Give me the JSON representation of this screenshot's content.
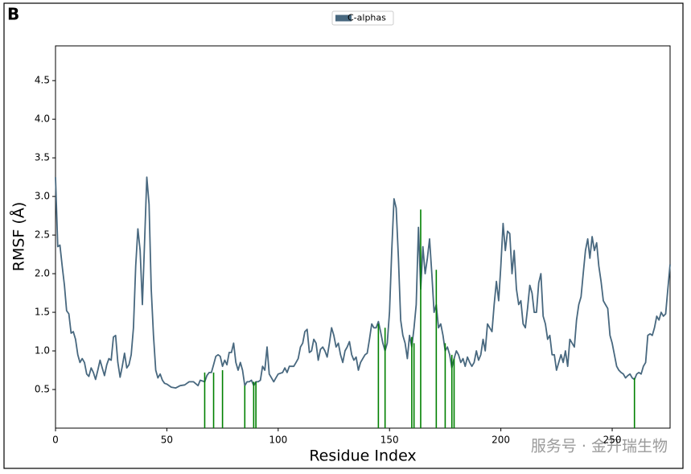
{
  "chart_data": {
    "type": "line",
    "panel_label": "B",
    "xlabel": "Residue Index",
    "ylabel": "RMSF (Å)",
    "watermark": "服务号 · 金开瑞生物",
    "xlim": [
      0,
      276
    ],
    "ylim": [
      0,
      4.95
    ],
    "xticks": [
      0,
      50,
      100,
      150,
      200,
      250
    ],
    "yticks": [
      0.5,
      {
        "value": 1,
        "label": "1.0"
      },
      1.5,
      {
        "value": 2,
        "label": "2.0"
      },
      2.5,
      {
        "value": 3,
        "label": "3.0"
      },
      3.5,
      {
        "value": 4,
        "label": "4.0"
      },
      4.5
    ],
    "legend": "top-center",
    "series": [
      {
        "name": "C-alphas",
        "color": "#48687f",
        "style": "line",
        "x": [
          0,
          1,
          2,
          3,
          4,
          5,
          6,
          7,
          8,
          9,
          10,
          11,
          12,
          13,
          14,
          15,
          16,
          17,
          18,
          19,
          20,
          21,
          22,
          23,
          24,
          25,
          26,
          27,
          28,
          29,
          30,
          31,
          32,
          33,
          34,
          35,
          36,
          37,
          38,
          39,
          40,
          41,
          42,
          43,
          44,
          45,
          46,
          47,
          48,
          49,
          50,
          52,
          54,
          56,
          58,
          60,
          62,
          64,
          65,
          67,
          68,
          69,
          70,
          71,
          72,
          73,
          74,
          75,
          76,
          77,
          78,
          79,
          80,
          81,
          82,
          83,
          84,
          85,
          86,
          87,
          88,
          89,
          90,
          91,
          92,
          93,
          94,
          95,
          96,
          97,
          98,
          99,
          100,
          102,
          103,
          104,
          105,
          107,
          108,
          109,
          110,
          111,
          112,
          113,
          114,
          115,
          116,
          117,
          118,
          119,
          120,
          121,
          122,
          123,
          124,
          125,
          126,
          127,
          128,
          129,
          130,
          131,
          132,
          133,
          134,
          135,
          136,
          137,
          138,
          139,
          140,
          141,
          142,
          143,
          144,
          145,
          146,
          147,
          148,
          149,
          150,
          151,
          152,
          153,
          154,
          155,
          156,
          157,
          158,
          159,
          160,
          161,
          162,
          163,
          164,
          165,
          166,
          167,
          168,
          169,
          170,
          171,
          172,
          173,
          174,
          175,
          176,
          177,
          178,
          179,
          180,
          181,
          182,
          183,
          184,
          185,
          186,
          187,
          188,
          189,
          190,
          191,
          192,
          193,
          194,
          195,
          196,
          197,
          198,
          199,
          200,
          201,
          202,
          203,
          204,
          205,
          206,
          207,
          208,
          209,
          210,
          211,
          212,
          213,
          214,
          215,
          216,
          217,
          218,
          219,
          220,
          221,
          222,
          223,
          224,
          225,
          226,
          227,
          228,
          229,
          230,
          231,
          232,
          233,
          234,
          235,
          236,
          237,
          238,
          239,
          240,
          241,
          242,
          243,
          244,
          245,
          246,
          247,
          248,
          249,
          250,
          251,
          252,
          253,
          254,
          255,
          256,
          257,
          258,
          259,
          260,
          261,
          262,
          263,
          264,
          265,
          266,
          267,
          268,
          269,
          270,
          271,
          272,
          273,
          274,
          275,
          276
        ],
        "values": [
          3.25,
          2.35,
          2.37,
          2.1,
          1.85,
          1.52,
          1.48,
          1.23,
          1.25,
          1.15,
          0.95,
          0.85,
          0.9,
          0.85,
          0.7,
          0.67,
          0.78,
          0.72,
          0.63,
          0.75,
          0.88,
          0.78,
          0.68,
          0.82,
          0.9,
          0.88,
          1.18,
          1.2,
          0.85,
          0.66,
          0.8,
          0.97,
          0.78,
          0.82,
          0.95,
          1.3,
          2.1,
          2.58,
          2.3,
          1.6,
          2.4,
          3.25,
          2.9,
          1.8,
          1.2,
          0.75,
          0.65,
          0.7,
          0.62,
          0.58,
          0.57,
          0.53,
          0.52,
          0.55,
          0.56,
          0.6,
          0.6,
          0.55,
          0.62,
          0.6,
          0.68,
          0.72,
          0.72,
          0.82,
          0.93,
          0.95,
          0.93,
          0.8,
          0.88,
          0.82,
          0.98,
          0.98,
          1.1,
          0.85,
          0.75,
          0.85,
          0.75,
          0.55,
          0.6,
          0.6,
          0.62,
          0.55,
          0.6,
          0.6,
          0.62,
          0.8,
          0.75,
          1.05,
          0.7,
          0.65,
          0.6,
          0.65,
          0.7,
          0.72,
          0.78,
          0.72,
          0.8,
          0.8,
          0.85,
          0.9,
          1.05,
          1.1,
          1.25,
          1.28,
          0.98,
          1.0,
          1.15,
          1.1,
          0.88,
          1.02,
          1.05,
          1.0,
          0.92,
          1.1,
          1.3,
          1.2,
          1.05,
          1.1,
          0.95,
          0.85,
          1.0,
          1.05,
          1.12,
          0.95,
          0.88,
          0.92,
          0.75,
          0.85,
          0.9,
          0.95,
          0.97,
          1.15,
          1.35,
          1.3,
          1.3,
          1.38,
          1.25,
          1.1,
          1.0,
          1.1,
          1.5,
          2.3,
          2.97,
          2.85,
          2.2,
          1.4,
          1.2,
          1.1,
          0.9,
          1.2,
          1.05,
          1.3,
          1.6,
          2.6,
          1.8,
          2.35,
          2.0,
          2.2,
          2.45,
          2.0,
          1.5,
          1.6,
          1.3,
          1.35,
          1.2,
          1.0,
          1.05,
          0.95,
          0.78,
          0.9,
          1.0,
          0.95,
          0.85,
          0.9,
          0.8,
          0.92,
          0.85,
          0.8,
          0.85,
          1.0,
          0.88,
          0.95,
          1.15,
          1.0,
          1.35,
          1.3,
          1.25,
          1.6,
          1.9,
          1.65,
          2.1,
          2.65,
          2.3,
          2.55,
          2.52,
          2.0,
          2.3,
          1.8,
          1.6,
          1.65,
          1.35,
          1.3,
          1.55,
          1.85,
          1.75,
          1.5,
          1.5,
          1.88,
          2.0,
          1.45,
          1.35,
          1.15,
          1.2,
          0.95,
          0.95,
          0.75,
          0.85,
          0.95,
          0.85,
          1.0,
          0.8,
          1.15,
          1.1,
          1.05,
          1.4,
          1.6,
          1.7,
          2.0,
          2.3,
          2.45,
          2.2,
          2.48,
          2.3,
          2.4,
          2.1,
          1.9,
          1.65,
          1.6,
          1.55,
          1.2,
          1.1,
          0.95,
          0.8,
          0.75,
          0.72,
          0.7,
          0.65,
          0.68,
          0.7,
          0.65,
          0.63,
          0.7,
          0.72,
          0.7,
          0.8,
          0.85,
          1.2,
          1.22,
          1.2,
          1.3,
          1.45,
          1.4,
          1.5,
          1.45,
          1.48,
          1.8,
          2.12
        ]
      },
      {
        "color": "#008000",
        "style": "stem",
        "x": [
          67,
          71,
          75,
          85,
          89,
          90,
          145,
          148,
          160,
          161,
          164,
          171,
          175,
          178,
          179,
          260
        ],
        "values": [
          0.72,
          0.72,
          0.75,
          0.55,
          0.6,
          0.6,
          1.35,
          1.3,
          1.18,
          1.1,
          2.83,
          2.05,
          1.1,
          0.95,
          0.9,
          0.65
        ]
      }
    ]
  }
}
